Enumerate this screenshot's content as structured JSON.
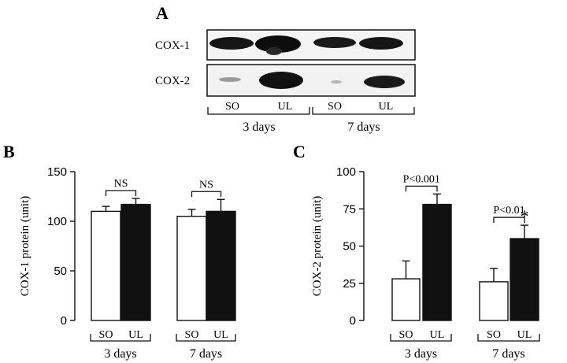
{
  "panel_a": {
    "letter": "A",
    "rows": [
      "COX-1",
      "COX-2"
    ],
    "lanes": [
      "SO",
      "UL",
      "SO",
      "UL"
    ],
    "groups": [
      "3 days",
      "7 days"
    ]
  },
  "chart_data": [
    {
      "type": "bar",
      "panel": "B",
      "ylabel": "COX-1 protein (unit)",
      "ylim": [
        0,
        150
      ],
      "yticks": [
        0,
        50,
        100,
        150
      ],
      "groups": [
        "3 days",
        "7 days"
      ],
      "lanes": [
        "SO",
        "UL"
      ],
      "series": [
        {
          "name": "SO",
          "color": "#ffffff",
          "values": [
            110,
            105
          ],
          "errors": [
            5,
            7
          ]
        },
        {
          "name": "UL",
          "color": "#111111",
          "values": [
            117,
            110
          ],
          "errors": [
            6,
            12
          ]
        }
      ],
      "annotations": [
        "NS",
        "NS"
      ],
      "asterisk": [
        false,
        false
      ]
    },
    {
      "type": "bar",
      "panel": "C",
      "ylabel": "COX-2 protein (unit)",
      "ylim": [
        0,
        100
      ],
      "yticks": [
        0,
        25,
        50,
        75,
        100
      ],
      "groups": [
        "3 days",
        "7 days"
      ],
      "lanes": [
        "SO",
        "UL"
      ],
      "series": [
        {
          "name": "SO",
          "color": "#ffffff",
          "values": [
            28,
            26
          ],
          "errors": [
            12,
            9
          ]
        },
        {
          "name": "UL",
          "color": "#111111",
          "values": [
            78,
            55
          ],
          "errors": [
            7,
            9
          ]
        }
      ],
      "annotations": [
        "P<0.001",
        "P<0.01"
      ],
      "asterisk": [
        false,
        true
      ]
    }
  ]
}
